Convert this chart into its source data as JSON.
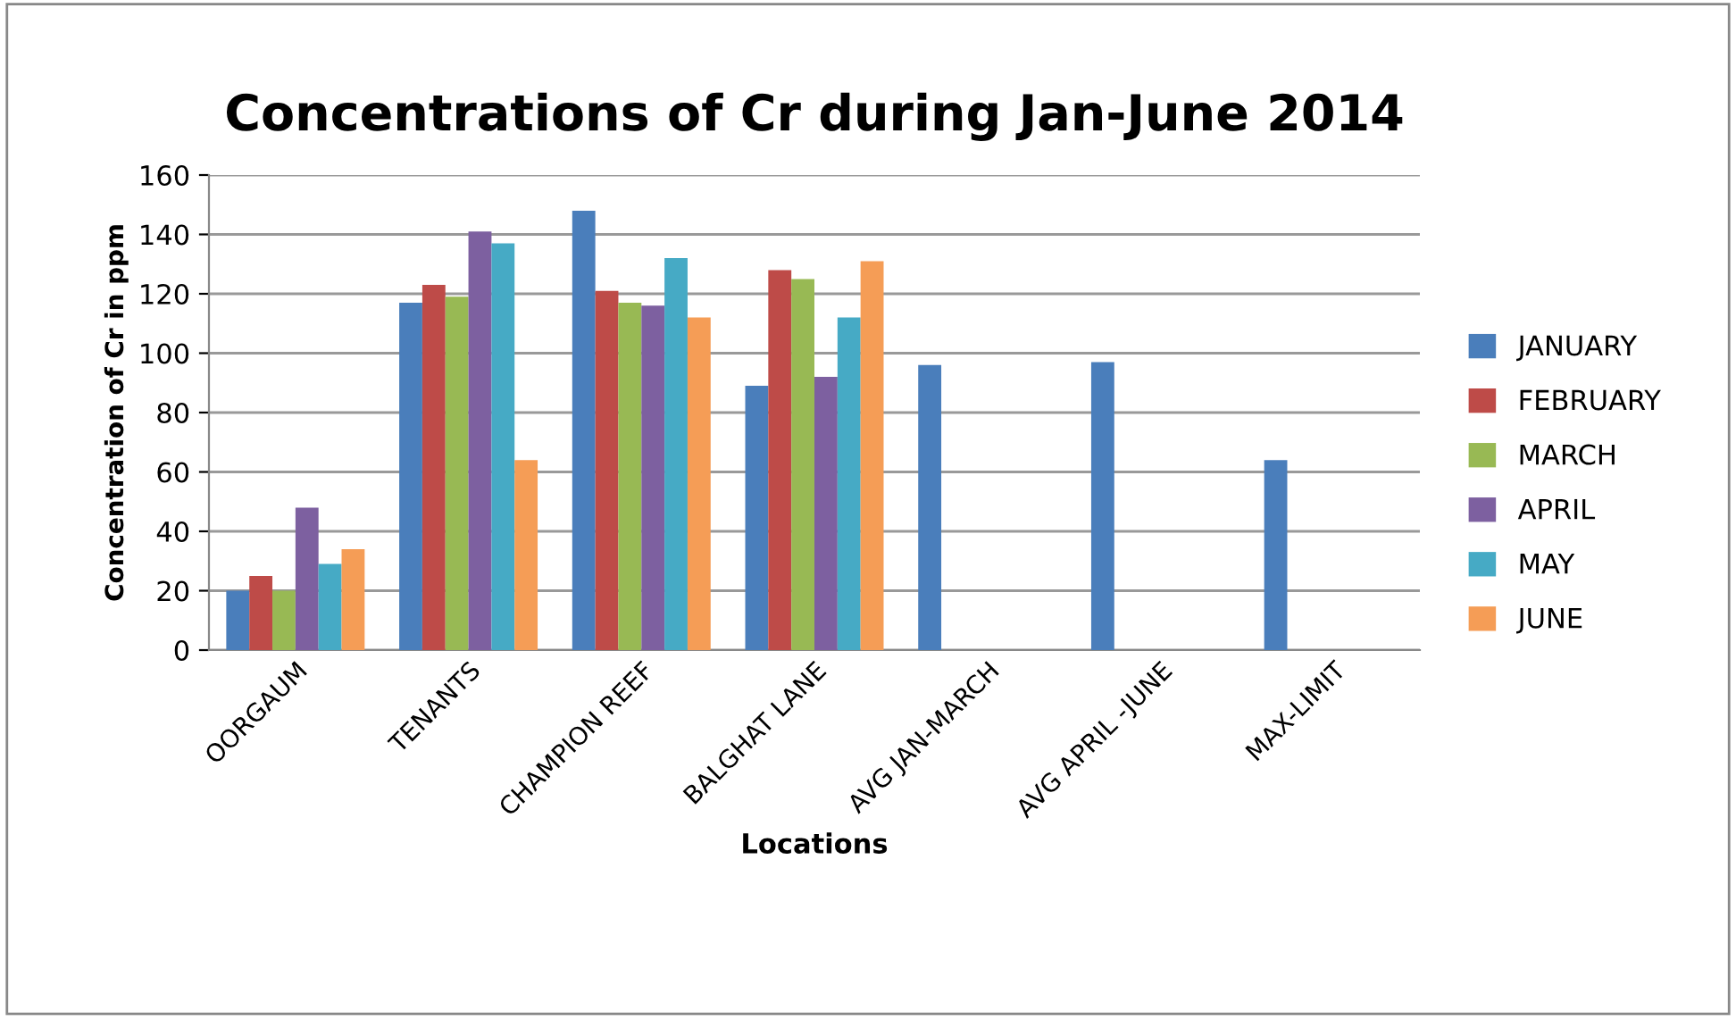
{
  "chart_data": {
    "type": "bar",
    "title": "Concentrations of Cr during Jan-June 2014",
    "xlabel": "Locations",
    "ylabel": "Concentration of Cr in ppm",
    "categories": [
      "OORGAUM",
      "TENANTS",
      "CHAMPION REEF",
      "BALGHAT LANE",
      "AVG JAN-MARCH",
      "AVG APRIL -JUNE",
      "MAX-LIMIT"
    ],
    "series": [
      {
        "name": "JANUARY",
        "color": "#4a7ebb",
        "values": [
          20,
          117,
          148,
          89,
          96,
          97,
          64
        ]
      },
      {
        "name": "FEBRUARY",
        "color": "#be4b48",
        "values": [
          25,
          123,
          121,
          128,
          null,
          null,
          null
        ]
      },
      {
        "name": "MARCH",
        "color": "#98b954",
        "values": [
          20,
          119,
          117,
          125,
          null,
          null,
          null
        ]
      },
      {
        "name": "APRIL",
        "color": "#7d60a0",
        "values": [
          48,
          141,
          116,
          92,
          null,
          null,
          null
        ]
      },
      {
        "name": "MAY",
        "color": "#46aac5",
        "values": [
          29,
          137,
          132,
          112,
          null,
          null,
          null
        ]
      },
      {
        "name": "JUNE",
        "color": "#f59d56",
        "values": [
          34,
          64,
          112,
          131,
          null,
          null,
          null
        ]
      }
    ],
    "ylim": [
      0,
      160
    ],
    "yticks": [
      0,
      20,
      40,
      60,
      80,
      100,
      120,
      140,
      160
    ],
    "grid": "y",
    "legend": "right"
  }
}
